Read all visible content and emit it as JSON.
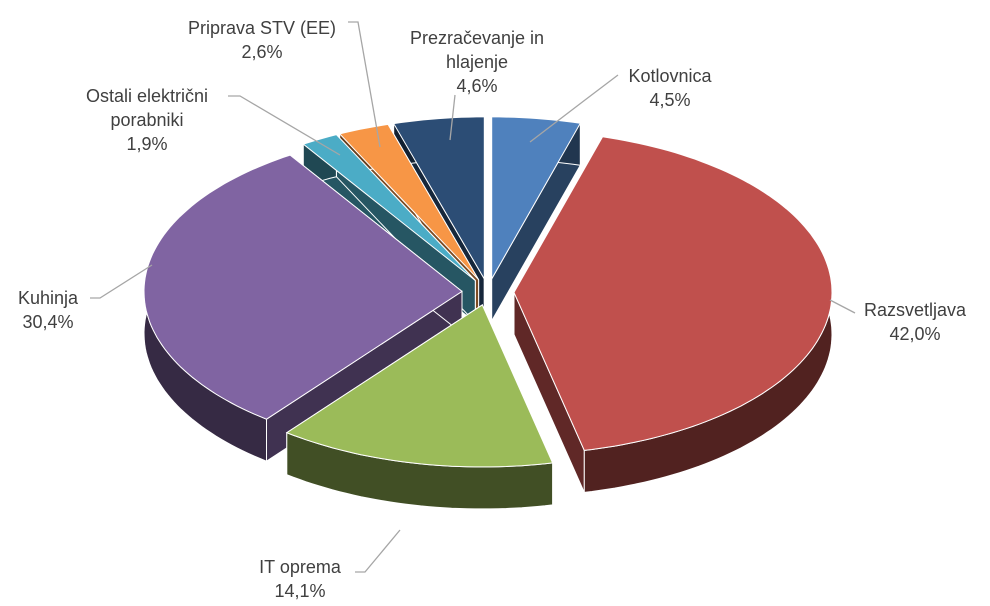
{
  "chart_data": {
    "type": "pie",
    "categories": [
      "Kotlovnica",
      "Razsvetljava",
      "IT oprema",
      "Kuhinja",
      "Ostali električni porabniki",
      "Priprava STV (EE)",
      "Prezračevanje in hlajenje"
    ],
    "values": [
      4.5,
      42.0,
      14.1,
      30.4,
      1.9,
      2.6,
      4.6
    ],
    "value_labels": [
      "4,5%",
      "42,0%",
      "14,1%",
      "30,4%",
      "1,9%",
      "2,6%",
      "4,6%"
    ],
    "colors": [
      "#4f81bd",
      "#c0504d",
      "#9bbb59",
      "#8064a2",
      "#4bacc6",
      "#f79646",
      "#2c4d75"
    ],
    "three_d": true,
    "exploded": true
  }
}
